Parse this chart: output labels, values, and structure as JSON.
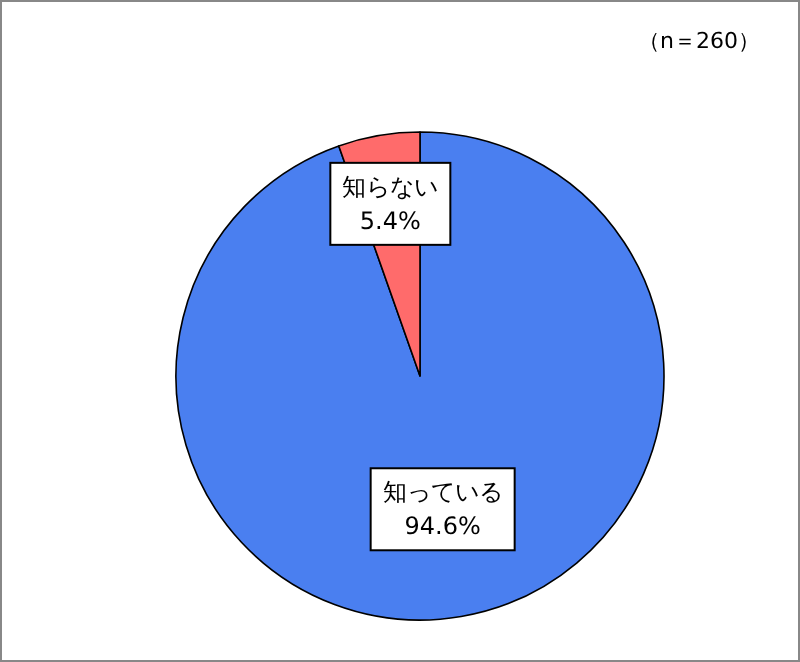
{
  "chart_data": {
    "type": "pie",
    "categories": [
      "知っている",
      "知らない"
    ],
    "values": [
      94.6,
      5.4
    ],
    "colors": [
      "#4a7ff0",
      "#ff6b6b"
    ],
    "value_labels": [
      "94.6%",
      "5.4%"
    ],
    "annotations": [
      "（n＝260）"
    ]
  }
}
